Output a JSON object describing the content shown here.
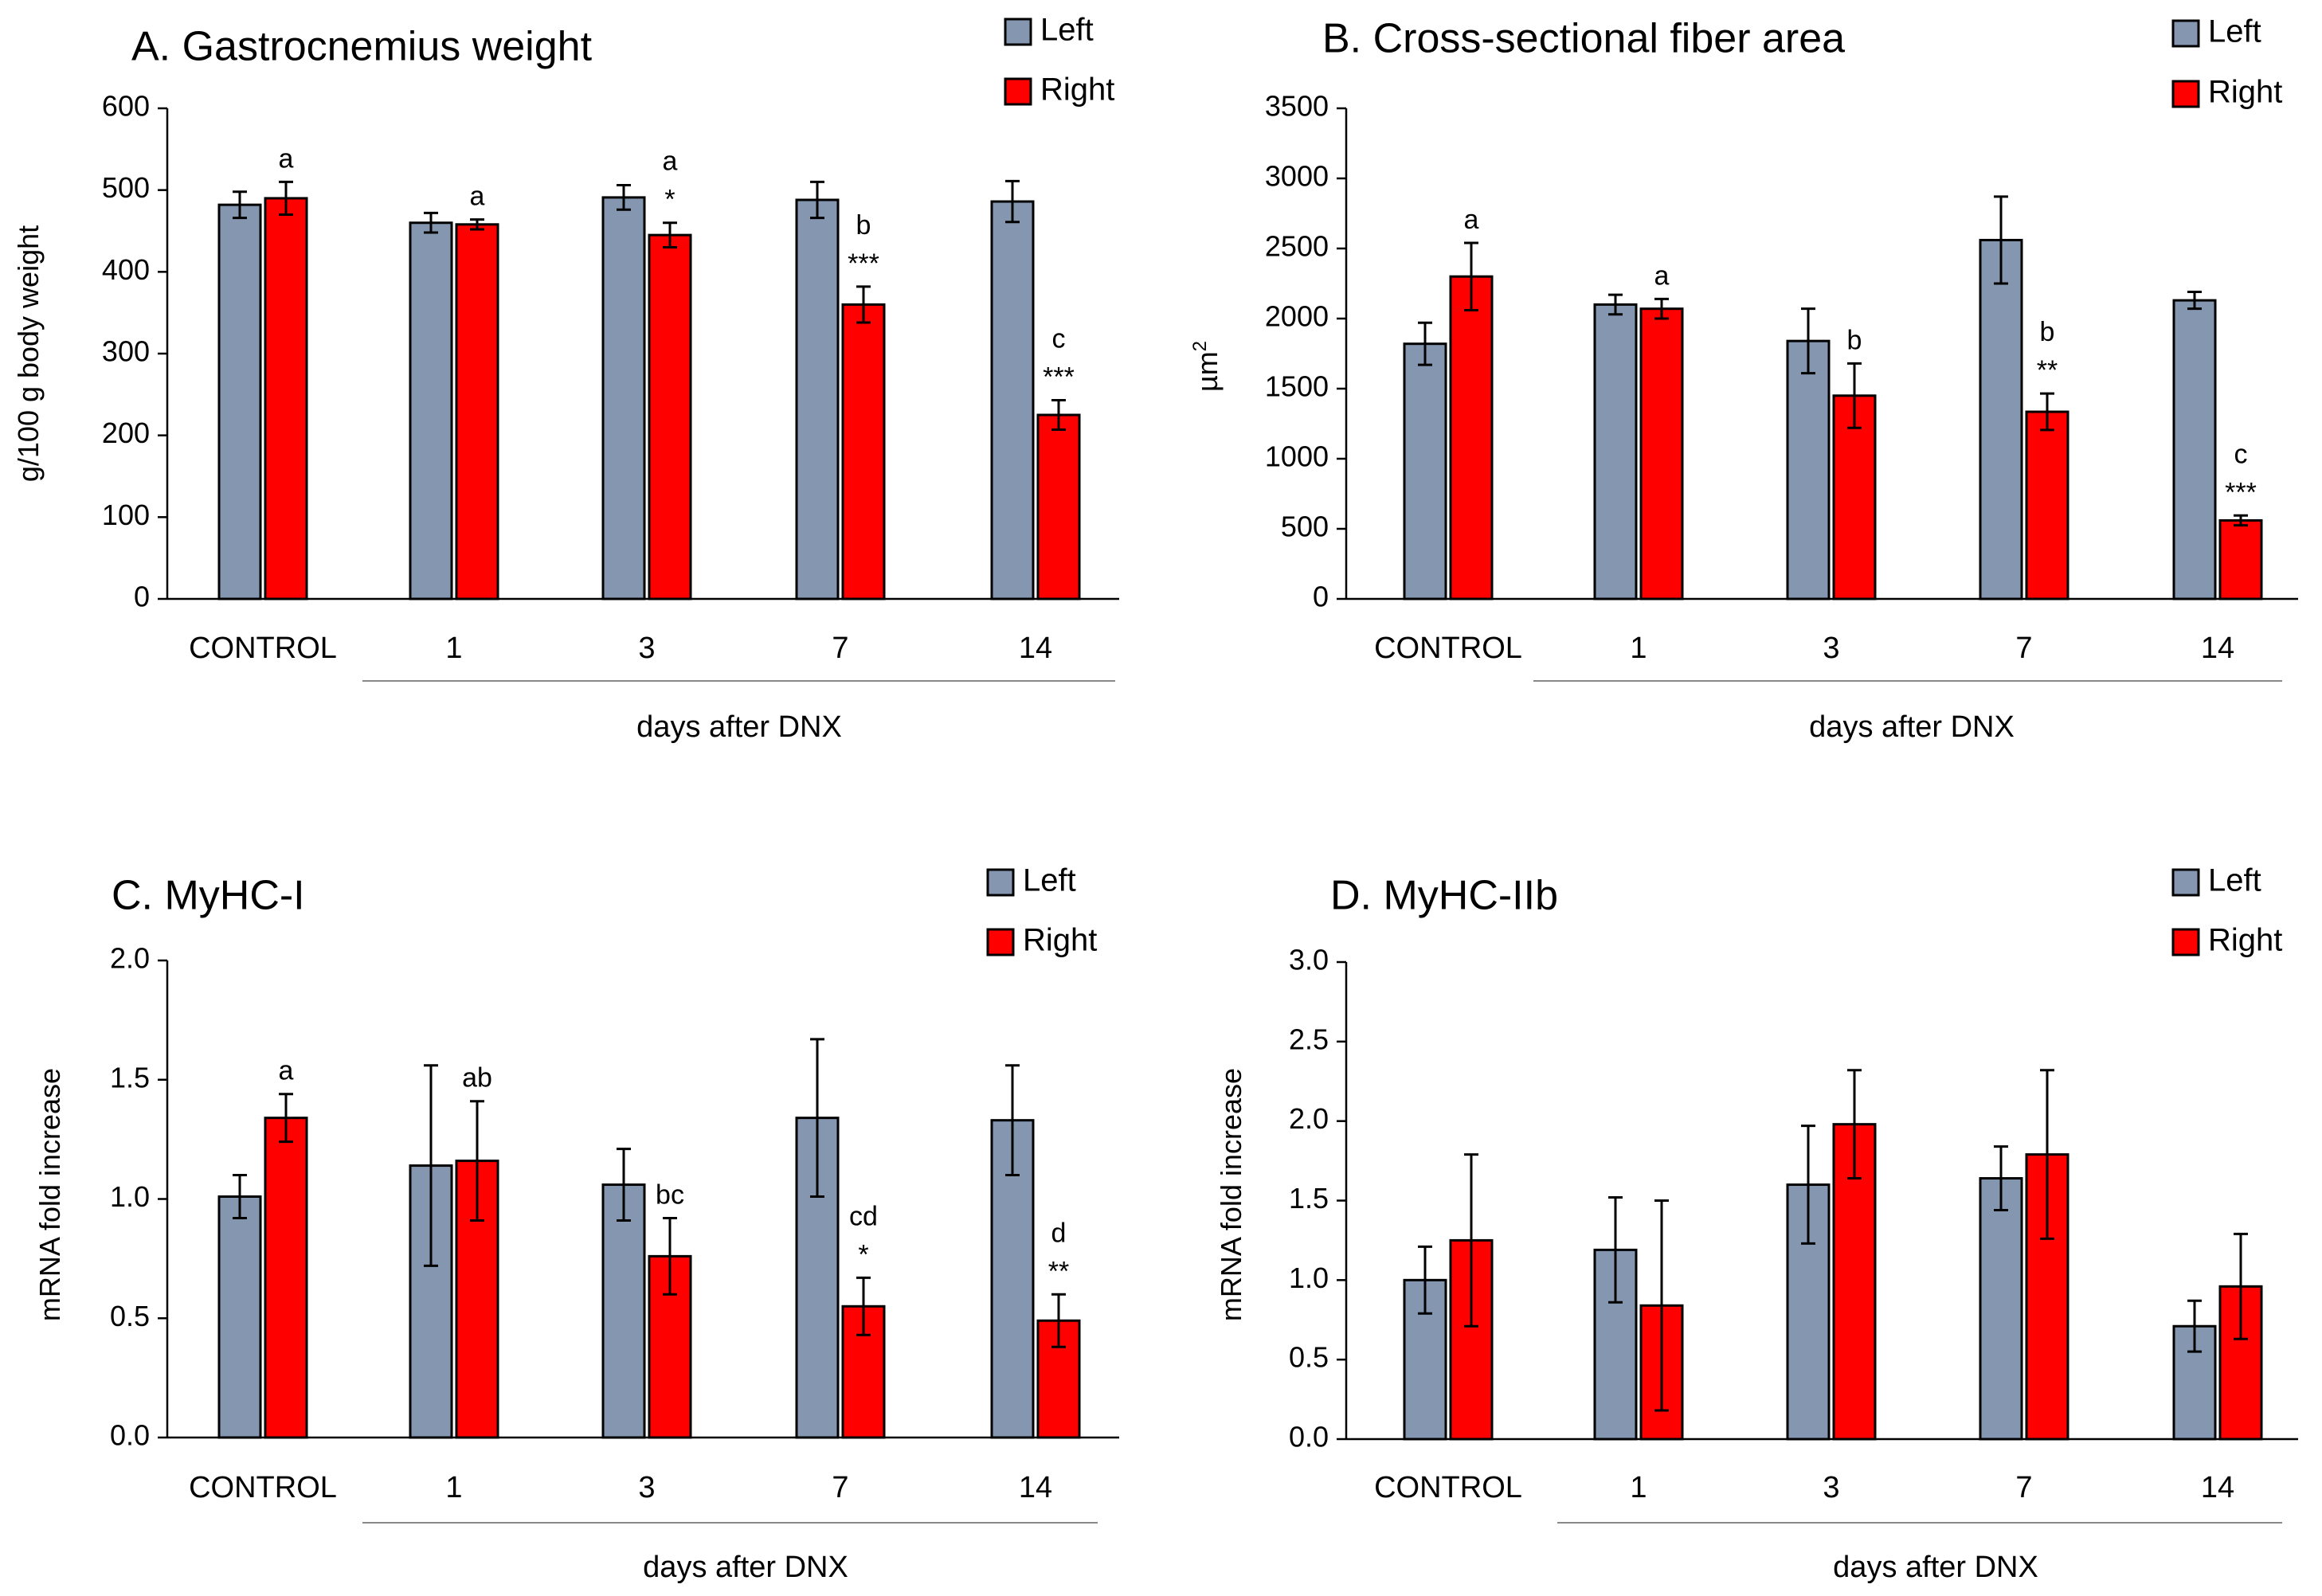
{
  "figure": {
    "left_color": "#8496b0",
    "right_color": "#ff0000",
    "groups": [
      "CONTROL",
      "1",
      "3",
      "7",
      "14"
    ],
    "xlabel": "days after DNX"
  },
  "chart_data": [
    {
      "type": "bar",
      "title": "A. Gastrocnemius weight",
      "ylabel": "g/100 g body weight",
      "ylim": [
        0,
        600
      ],
      "yticks": [
        0,
        100,
        200,
        300,
        400,
        500,
        600
      ],
      "ytick_labels": [
        "0",
        "100",
        "200",
        "300",
        "400",
        "500",
        "600"
      ],
      "categories": [
        "CONTROL",
        "1",
        "3",
        "7",
        "14"
      ],
      "xlabel": "days after DNX",
      "legend": [
        "Left",
        "Right"
      ],
      "series": [
        {
          "name": "Left",
          "values": [
            482,
            460,
            491,
            488,
            486
          ],
          "errors": [
            16,
            12,
            15,
            22,
            25
          ]
        },
        {
          "name": "Right",
          "values": [
            490,
            458,
            445,
            360,
            225
          ],
          "errors": [
            20,
            6,
            15,
            22,
            18
          ]
        }
      ],
      "annotations": [
        {
          "group": 0,
          "lines": [
            "a"
          ]
        },
        {
          "group": 1,
          "lines": [
            "a"
          ]
        },
        {
          "group": 2,
          "lines": [
            "a",
            "*"
          ]
        },
        {
          "group": 3,
          "lines": [
            "b",
            "***"
          ]
        },
        {
          "group": 4,
          "lines": [
            "c",
            "***"
          ]
        }
      ]
    },
    {
      "type": "bar",
      "title": "B. Cross-sectional fiber area",
      "ylabel": "µm",
      "ylabel_sup": "2",
      "ylim": [
        0,
        3500
      ],
      "yticks": [
        0,
        500,
        1000,
        1500,
        2000,
        2500,
        3000,
        3500
      ],
      "ytick_labels": [
        "0",
        "500",
        "1000",
        "1500",
        "2000",
        "2500",
        "3000",
        "3500"
      ],
      "categories": [
        "CONTROL",
        "1",
        "3",
        "7",
        "14"
      ],
      "xlabel": "days after DNX",
      "legend": [
        "Left",
        "Right"
      ],
      "series": [
        {
          "name": "Left",
          "values": [
            1820,
            2100,
            1840,
            2560,
            2130
          ],
          "errors": [
            150,
            70,
            230,
            310,
            60
          ]
        },
        {
          "name": "Right",
          "values": [
            2300,
            2070,
            1450,
            1335,
            560
          ],
          "errors": [
            240,
            70,
            230,
            130,
            35
          ]
        }
      ],
      "annotations": [
        {
          "group": 0,
          "lines": [
            "a"
          ]
        },
        {
          "group": 1,
          "lines": [
            "a"
          ]
        },
        {
          "group": 2,
          "lines": [
            "b"
          ]
        },
        {
          "group": 3,
          "lines": [
            "b",
            "**"
          ]
        },
        {
          "group": 4,
          "lines": [
            "c",
            "***"
          ]
        }
      ]
    },
    {
      "type": "bar",
      "title": "C. MyHC-I",
      "ylabel": "mRNA fold increase",
      "ylim": [
        0,
        2.0
      ],
      "yticks": [
        0,
        0.5,
        1.0,
        1.5,
        2.0
      ],
      "ytick_labels": [
        "0.0",
        "0.5",
        "1.0",
        "1.5",
        "2.0"
      ],
      "categories": [
        "CONTROL",
        "1",
        "3",
        "7",
        "14"
      ],
      "xlabel": "days after DNX",
      "legend": [
        "Left",
        "Right"
      ],
      "series": [
        {
          "name": "Left",
          "values": [
            1.01,
            1.14,
            1.06,
            1.34,
            1.33
          ],
          "errors": [
            0.09,
            0.42,
            0.15,
            0.33,
            0.23
          ]
        },
        {
          "name": "Right",
          "values": [
            1.34,
            1.16,
            0.76,
            0.55,
            0.49
          ],
          "errors": [
            0.1,
            0.25,
            0.16,
            0.12,
            0.11
          ]
        }
      ],
      "annotations": [
        {
          "group": 0,
          "lines": [
            "a"
          ]
        },
        {
          "group": 1,
          "lines": [
            "ab"
          ]
        },
        {
          "group": 2,
          "lines": [
            "bc"
          ]
        },
        {
          "group": 3,
          "lines": [
            "cd",
            "*"
          ]
        },
        {
          "group": 4,
          "lines": [
            "d",
            "**"
          ]
        }
      ]
    },
    {
      "type": "bar",
      "title": "D. MyHC-IIb",
      "ylabel": "mRNA fold increase",
      "ylim": [
        0,
        3.0
      ],
      "yticks": [
        0,
        0.5,
        1.0,
        1.5,
        2.0,
        2.5,
        3.0
      ],
      "ytick_labels": [
        "0.0",
        "0.5",
        "1.0",
        "1.5",
        "2.0",
        "2.5",
        "3.0"
      ],
      "categories": [
        "CONTROL",
        "1",
        "3",
        "7",
        "14"
      ],
      "xlabel": "days after DNX",
      "legend": [
        "Left",
        "Right"
      ],
      "series": [
        {
          "name": "Left",
          "values": [
            1.0,
            1.19,
            1.6,
            1.64,
            0.71
          ],
          "errors": [
            0.21,
            0.33,
            0.37,
            0.2,
            0.16
          ]
        },
        {
          "name": "Right",
          "values": [
            1.25,
            0.84,
            1.98,
            1.79,
            0.96
          ],
          "errors": [
            0.54,
            0.66,
            0.34,
            0.53,
            0.33
          ]
        }
      ],
      "annotations": []
    }
  ]
}
